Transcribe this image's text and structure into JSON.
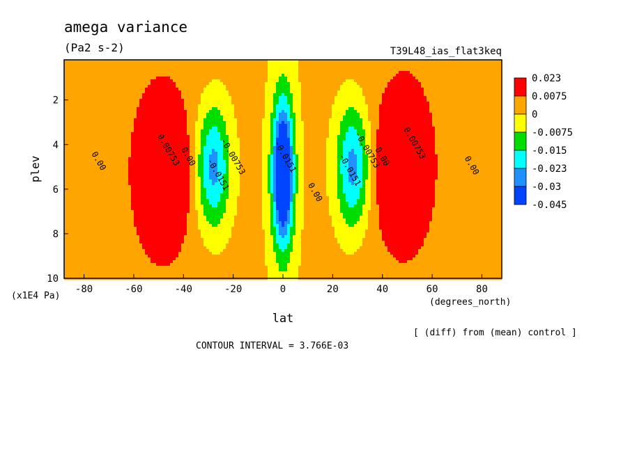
{
  "chart_data": {
    "type": "heatmap",
    "title": "amega variance",
    "units": "(Pa2 s-2)",
    "run_label": "T39L48_ias_flat3keq",
    "xlabel": "lat",
    "x_units": "(degrees_north)",
    "ylabel": "plev",
    "y_units": "(x1E4 Pa)",
    "xlim": [
      -88,
      88
    ],
    "ylim": [
      0.2,
      10
    ],
    "y_inverted": true,
    "x_ticks": [
      -80,
      -60,
      -40,
      -20,
      0,
      20,
      40,
      60,
      80
    ],
    "y_ticks": [
      2,
      4,
      6,
      8,
      10
    ],
    "note": "[ (diff) from (mean) control ]",
    "contour_interval": "CONTOUR INTERVAL = 3.766E-03",
    "legend": {
      "placement": "right",
      "labels": [
        "0.023",
        "0.0075",
        "0",
        "-0.0075",
        "-0.015",
        "-0.023",
        "-0.03",
        "-0.045"
      ],
      "colors": [
        "#ff0000",
        "#ffa500",
        "#ffff00",
        "#00dd00",
        "#00ffff",
        "#1e90ff",
        "#0044ff"
      ]
    },
    "contour_labels": [
      {
        "text": "0.00",
        "lat": -75,
        "plev": 4.8
      },
      {
        "text": "0.00753",
        "lat": -47,
        "plev": 4.3
      },
      {
        "text": "0.00",
        "lat": -39,
        "plev": 4.6
      },
      {
        "text": "-0.0151",
        "lat": -27,
        "plev": 5.4
      },
      {
        "text": "-0.00753",
        "lat": -21,
        "plev": 4.6
      },
      {
        "text": "-0.0151",
        "lat": 0,
        "plev": 4.6
      },
      {
        "text": "0.00",
        "lat": 12,
        "plev": 6.2
      },
      {
        "text": "-0.0151",
        "lat": 26,
        "plev": 5.2
      },
      {
        "text": "-0.00753",
        "lat": 33,
        "plev": 4.3
      },
      {
        "text": "0.00",
        "lat": 39,
        "plev": 4.6
      },
      {
        "text": "0.00753",
        "lat": 52,
        "plev": 4.0
      },
      {
        "text": "0.00",
        "lat": 75,
        "plev": 5.0
      }
    ],
    "anomalies": [
      {
        "lat": -49,
        "plev": 5.2,
        "dlat": 9,
        "dp": 2.8,
        "amp": 0.03
      },
      {
        "lat": 49,
        "plev": 5.0,
        "dlat": 9,
        "dp": 2.8,
        "amp": 0.03
      },
      {
        "lat": -28,
        "plev": 5.0,
        "dlat": 6.5,
        "dp": 2.7,
        "amp": -0.029
      },
      {
        "lat": 28,
        "plev": 5.0,
        "dlat": 6.5,
        "dp": 2.7,
        "amp": -0.029
      },
      {
        "lat": 0,
        "plev": 5.3,
        "dlat": 4.2,
        "dp": 3.2,
        "amp": -0.052
      },
      {
        "lat": 12,
        "plev": 4.5,
        "dlat": 2.5,
        "dp": 1.4,
        "amp": 0.002
      }
    ],
    "background": {
      "amp": 0.0055,
      "lat_center": 45,
      "lat_width": 34
    }
  }
}
